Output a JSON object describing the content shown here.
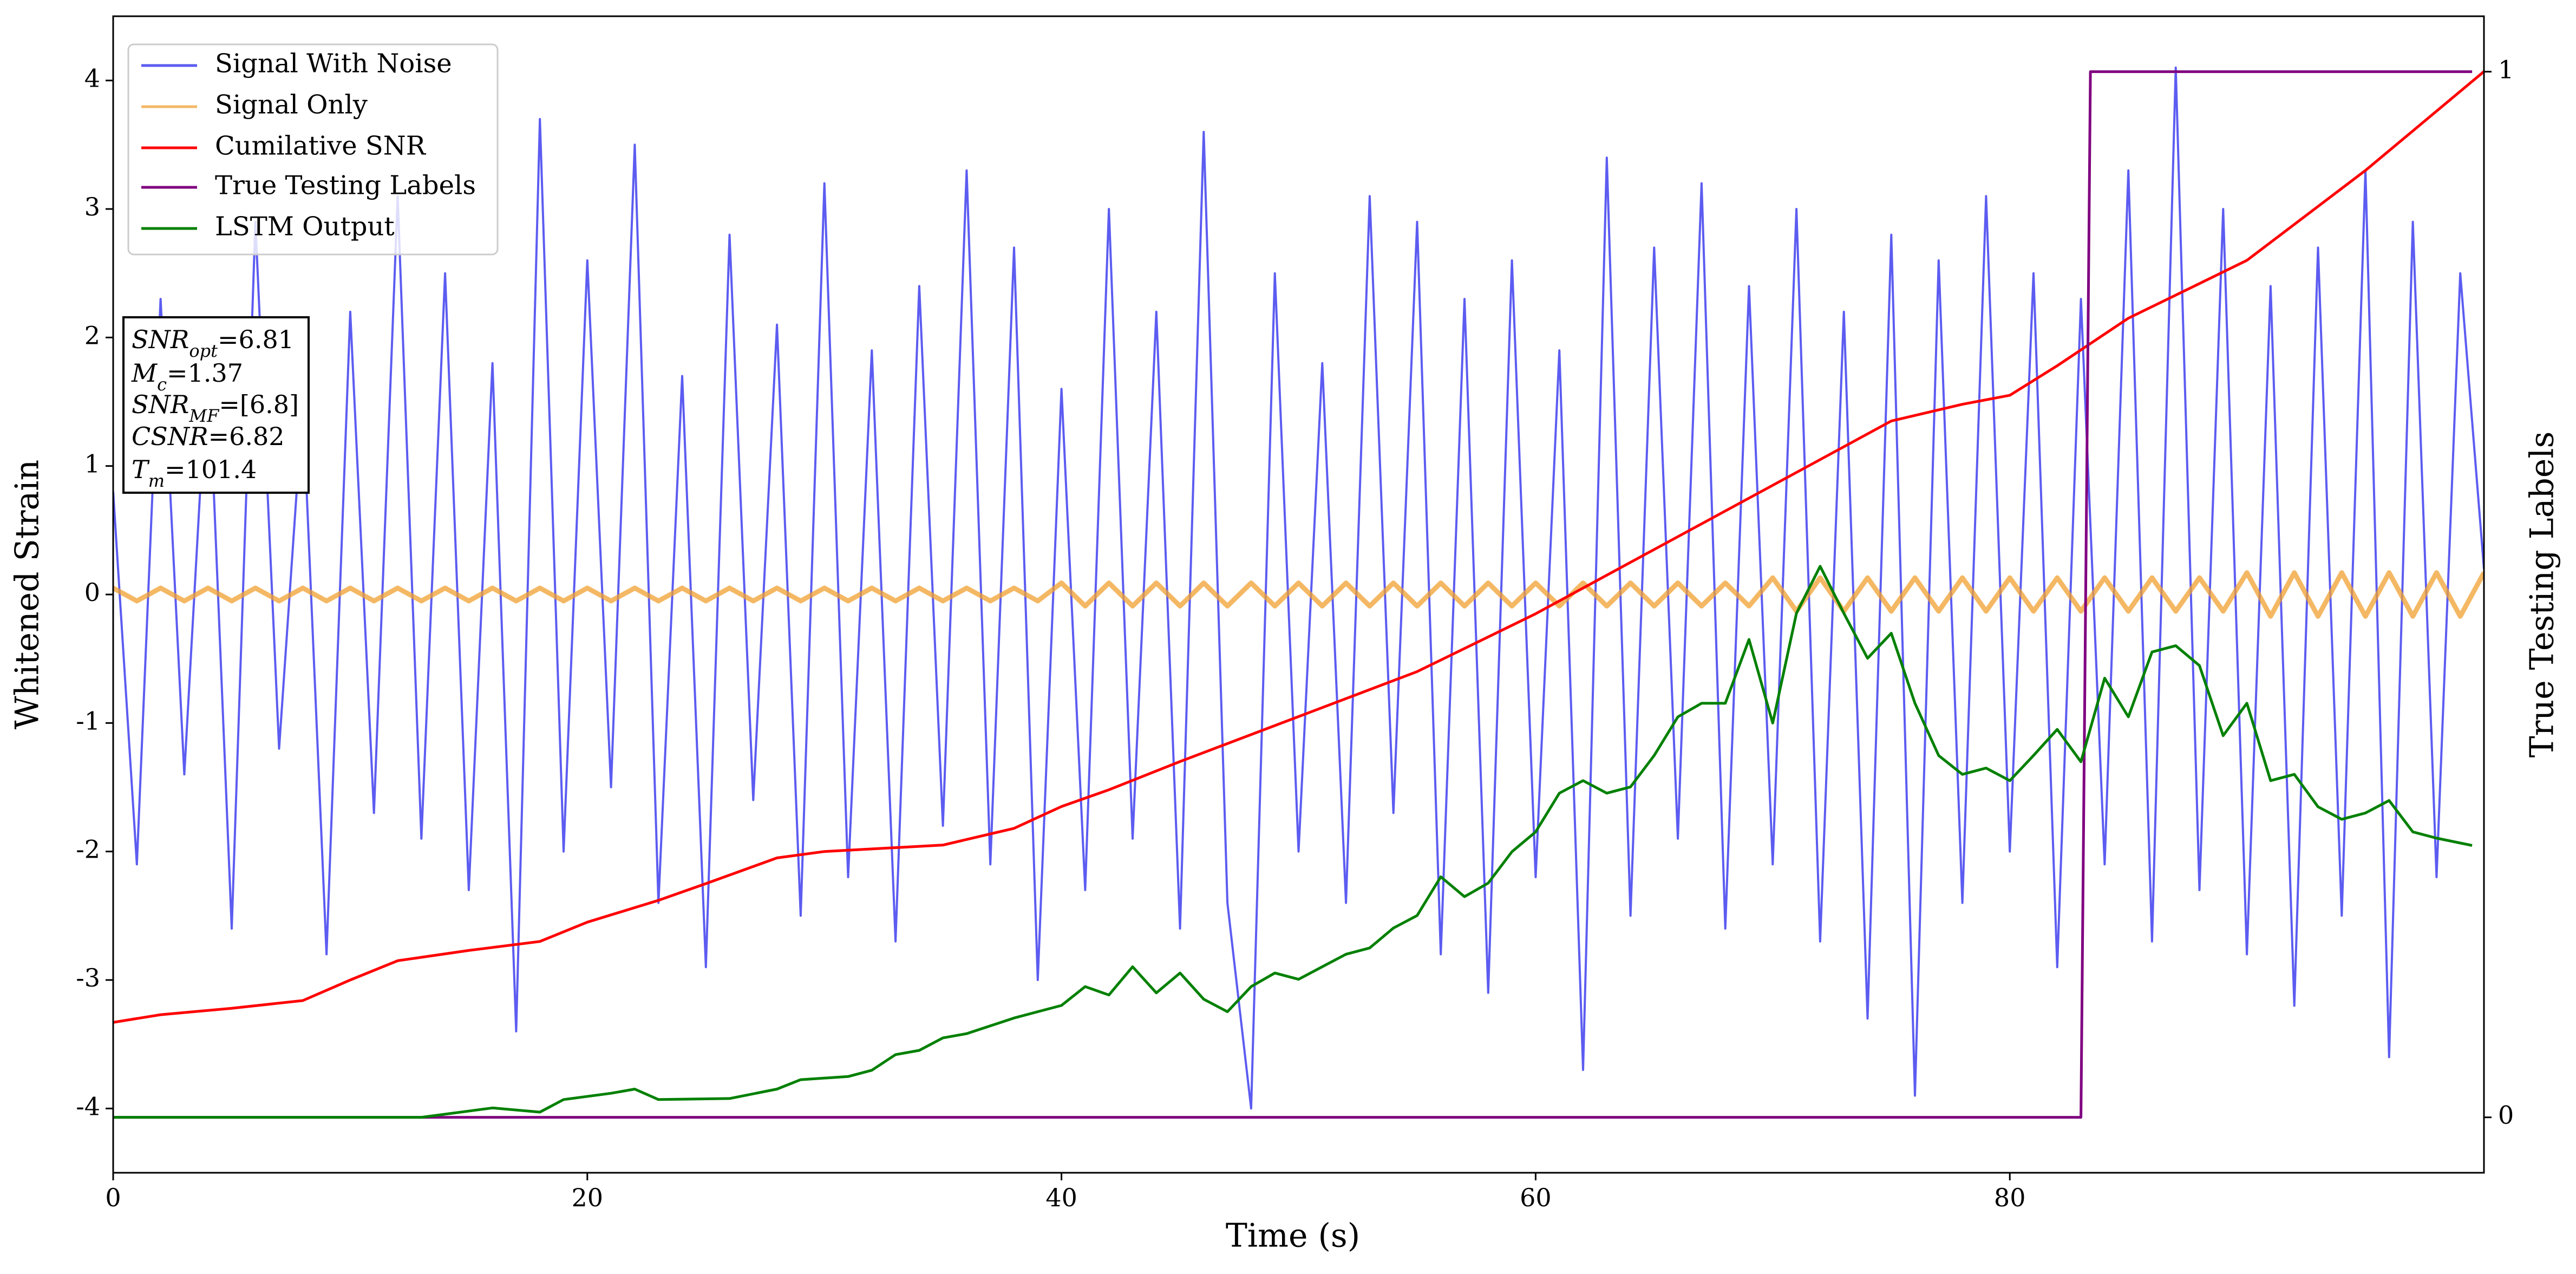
{
  "chart_data": {
    "type": "line",
    "xlabel": "Time (s)",
    "ylabel": "Whitened Strain",
    "y2label": "True Testing Labels",
    "xlim": [
      0,
      100
    ],
    "xticks": [
      0,
      20,
      40,
      60,
      80
    ],
    "ylim": [
      -4.5,
      4.5
    ],
    "yticks": [
      -4,
      -3,
      -2,
      -1,
      0,
      1,
      2,
      3,
      4
    ],
    "y2lim": [
      -0.053,
      1.053
    ],
    "y2ticks": [
      0,
      1
    ],
    "legend": "upper left",
    "x": [
      0,
      1,
      2,
      3,
      4,
      5,
      6,
      7,
      8,
      9,
      10,
      11,
      12,
      13,
      14,
      15,
      16,
      17,
      18,
      19,
      20,
      21,
      22,
      23,
      24,
      25,
      26,
      27,
      28,
      29,
      30,
      31,
      32,
      33,
      34,
      35,
      36,
      37,
      38,
      39,
      40,
      41,
      42,
      43,
      44,
      45,
      46,
      47,
      48,
      49,
      50,
      51,
      52,
      53,
      54,
      55,
      56,
      57,
      58,
      59,
      60,
      61,
      62,
      63,
      64,
      65,
      66,
      67,
      68,
      69,
      70,
      71,
      72,
      73,
      74,
      75,
      76,
      77,
      78,
      79,
      80,
      81,
      82,
      83,
      84,
      85,
      86,
      87,
      88,
      89,
      90,
      91,
      92,
      93,
      94,
      95,
      96,
      97,
      98,
      99,
      100
    ],
    "series": [
      {
        "name": "Signal With Noise",
        "color": "#3333ee",
        "values": [
          0.8,
          -2.1,
          2.3,
          -1.4,
          1.9,
          -2.6,
          2.9,
          -1.2,
          1.5,
          -2.8,
          2.2,
          -1.7,
          3.1,
          -1.9,
          2.5,
          -2.3,
          1.8,
          -3.4,
          3.7,
          -2.0,
          2.6,
          -1.5,
          3.5,
          -2.4,
          1.7,
          -2.9,
          2.8,
          -1.6,
          2.1,
          -2.5,
          3.2,
          -2.2,
          1.9,
          -2.7,
          2.4,
          -1.8,
          3.3,
          -2.1,
          2.7,
          -3.0,
          1.6,
          -2.3,
          3.0,
          -1.9,
          2.2,
          -2.6,
          3.6,
          -2.4,
          -4.0,
          2.5,
          -2.0,
          1.8,
          -2.4,
          3.1,
          -1.7,
          2.9,
          -2.8,
          2.3,
          -3.1,
          2.6,
          -2.2,
          1.9,
          -3.7,
          3.4,
          -2.5,
          2.7,
          -1.9,
          3.2,
          -2.6,
          2.4,
          -2.1,
          3.0,
          -2.7,
          2.2,
          -3.3,
          2.8,
          -3.9,
          2.6,
          -2.4,
          3.1,
          -2.0,
          2.5,
          -2.9,
          2.3,
          -2.1,
          3.3,
          -2.7,
          4.1,
          -2.3,
          3.0,
          -2.8,
          2.4,
          -3.2,
          2.7,
          -2.5,
          3.3,
          -3.6,
          2.9,
          -2.2,
          2.5,
          0.2
        ]
      },
      {
        "name": "Signal Only",
        "color": "#f0a030",
        "values": [
          0.05,
          -0.05,
          0.05,
          -0.05,
          0.05,
          -0.05,
          0.05,
          -0.05,
          0.05,
          -0.05,
          0.05,
          -0.05,
          0.05,
          -0.05,
          0.05,
          -0.05,
          0.05,
          -0.05,
          0.05,
          -0.05,
          0.05,
          -0.05,
          0.05,
          -0.05,
          0.05,
          -0.05,
          0.05,
          -0.05,
          0.05,
          -0.05,
          0.05,
          -0.05,
          0.05,
          -0.05,
          0.05,
          -0.05,
          0.05,
          -0.05,
          0.05,
          -0.05,
          0.09,
          -0.09,
          0.09,
          -0.09,
          0.09,
          -0.09,
          0.09,
          -0.09,
          0.09,
          -0.09,
          0.09,
          -0.09,
          0.09,
          -0.09,
          0.09,
          -0.09,
          0.09,
          -0.09,
          0.09,
          -0.09,
          0.09,
          -0.09,
          0.09,
          -0.09,
          0.09,
          -0.09,
          0.09,
          -0.09,
          0.09,
          -0.09,
          0.13,
          -0.13,
          0.13,
          -0.13,
          0.13,
          -0.13,
          0.13,
          -0.13,
          0.13,
          -0.13,
          0.13,
          -0.13,
          0.13,
          -0.13,
          0.13,
          -0.13,
          0.13,
          -0.13,
          0.13,
          -0.13,
          0.17,
          -0.17,
          0.17,
          -0.17,
          0.17,
          -0.17,
          0.17,
          -0.17,
          0.17,
          -0.17,
          0.17
        ]
      },
      {
        "name": "Cumilative SNR",
        "color": "#ff0000",
        "x": [
          0,
          2,
          5,
          8,
          10,
          12,
          15,
          18,
          20,
          23,
          25,
          28,
          30,
          35,
          38,
          40,
          42,
          45,
          50,
          55,
          60,
          65,
          70,
          75,
          78,
          80,
          82,
          85,
          88,
          90,
          95,
          100
        ],
        "values": [
          -3.33,
          -3.27,
          -3.22,
          -3.16,
          -3.0,
          -2.85,
          -2.77,
          -2.7,
          -2.55,
          -2.38,
          -2.25,
          -2.05,
          -2.0,
          -1.95,
          -1.82,
          -1.65,
          -1.52,
          -1.3,
          -0.95,
          -0.6,
          -0.15,
          0.35,
          0.85,
          1.35,
          1.48,
          1.55,
          1.78,
          2.15,
          2.42,
          2.6,
          3.3,
          4.07
        ]
      },
      {
        "name": "True Testing Labels",
        "color": "#800080",
        "axis": "y2",
        "x": [
          0,
          83,
          83.4,
          99.5
        ],
        "values": [
          0,
          0,
          1,
          1
        ]
      },
      {
        "name": "LSTM Output",
        "color": "#008000",
        "axis": "y2",
        "x": [
          0,
          13,
          16,
          18,
          19,
          21,
          22,
          23,
          26,
          28,
          29,
          31,
          32,
          33,
          34,
          35,
          36,
          38,
          40,
          41,
          42,
          43,
          44,
          45,
          46,
          47,
          48,
          49,
          50,
          51,
          52,
          53,
          54,
          55,
          56,
          57,
          58,
          59,
          60,
          61,
          62,
          63,
          64,
          65,
          66,
          67,
          68,
          69,
          70,
          71,
          72,
          73,
          74,
          75,
          76,
          77,
          78,
          79,
          80,
          81,
          82,
          83,
          84,
          85,
          86,
          87,
          88,
          89,
          90,
          91,
          92,
          93,
          94,
          95,
          96,
          97,
          98,
          99.5
        ],
        "values": [
          0,
          0,
          0.009,
          0.005,
          0.017,
          0.023,
          0.027,
          0.017,
          0.018,
          0.027,
          0.036,
          0.039,
          0.045,
          0.06,
          0.064,
          0.076,
          0.08,
          0.095,
          0.107,
          0.125,
          0.117,
          0.144,
          0.119,
          0.138,
          0.113,
          0.101,
          0.125,
          0.138,
          0.132,
          0.144,
          0.156,
          0.162,
          0.181,
          0.193,
          0.23,
          0.211,
          0.224,
          0.254,
          0.273,
          0.31,
          0.322,
          0.31,
          0.316,
          0.346,
          0.383,
          0.396,
          0.396,
          0.457,
          0.377,
          0.482,
          0.527,
          0.482,
          0.439,
          0.463,
          0.396,
          0.346,
          0.328,
          0.334,
          0.322,
          0.346,
          0.371,
          0.34,
          0.42,
          0.383,
          0.445,
          0.451,
          0.432,
          0.365,
          0.396,
          0.322,
          0.328,
          0.297,
          0.285,
          0.291,
          0.303,
          0.273,
          0.267,
          0.26
        ]
      }
    ],
    "annotation": [
      {
        "symbol": "SNR",
        "subscript": "opt",
        "text": "=6.81"
      },
      {
        "symbol": "M",
        "subscript": "c",
        "text": "=1.37"
      },
      {
        "symbol": "SNR",
        "subscript": "MF",
        "text": "=[6.8]"
      },
      {
        "symbol": "CSNR",
        "subscript": "",
        "text": "=6.82"
      },
      {
        "symbol": "T",
        "subscript": "m",
        "text": "=101.4"
      }
    ]
  }
}
